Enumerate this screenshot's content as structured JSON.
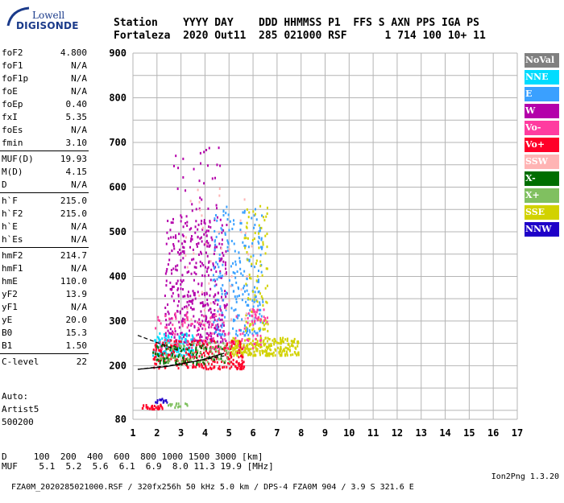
{
  "logo": {
    "line1": "Lowell",
    "line2": "DIGISONDE"
  },
  "header": {
    "columns": "Station    YYYY DAY    DDD HHMMSS P1  FFS S AXN PPS IGA PS",
    "values": "Fortaleza  2020 Out11  285 021000 RSF      1 714 100 10+ 11"
  },
  "params": [
    {
      "name": "foF2",
      "value": "4.800"
    },
    {
      "name": "foF1",
      "value": "N/A"
    },
    {
      "name": "foF1p",
      "value": "N/A"
    },
    {
      "name": "foE",
      "value": "N/A"
    },
    {
      "name": "foEp",
      "value": "0.40"
    },
    {
      "name": "fxI",
      "value": "5.35"
    },
    {
      "name": "foEs",
      "value": "N/A"
    },
    {
      "name": "fmin",
      "value": "3.10"
    },
    {
      "name": "MUF(D)",
      "value": "19.93"
    },
    {
      "name": "M(D)",
      "value": "4.15"
    },
    {
      "name": "D",
      "value": "N/A"
    },
    {
      "name": "h`F",
      "value": "215.0"
    },
    {
      "name": "h`F2",
      "value": "215.0"
    },
    {
      "name": "h`E",
      "value": "N/A"
    },
    {
      "name": "h`Es",
      "value": "N/A"
    },
    {
      "name": "hmF2",
      "value": "214.7"
    },
    {
      "name": "hmF1",
      "value": "N/A"
    },
    {
      "name": "hmE",
      "value": "110.0"
    },
    {
      "name": "yF2",
      "value": "13.9"
    },
    {
      "name": "yF1",
      "value": "N/A"
    },
    {
      "name": "yE",
      "value": "20.0"
    },
    {
      "name": "B0",
      "value": "15.3"
    },
    {
      "name": "B1",
      "value": "1.50"
    },
    {
      "name": "C-level",
      "value": "22"
    }
  ],
  "auto": {
    "line1": "Auto:",
    "line2": "Artist5",
    "line3": "500200"
  },
  "legend": [
    {
      "label": "NoVal",
      "color": "#808080"
    },
    {
      "label": "NNE",
      "color": "#00dcff"
    },
    {
      "label": "E",
      "color": "#3aa0ff"
    },
    {
      "label": "W",
      "color": "#b400aa"
    },
    {
      "label": "Vo-",
      "color": "#ff3ca0"
    },
    {
      "label": "Vo+",
      "color": "#ff0028"
    },
    {
      "label": "SSW",
      "color": "#ffb4b4"
    },
    {
      "label": "X-",
      "color": "#006e00"
    },
    {
      "label": "X+",
      "color": "#80c060"
    },
    {
      "label": "SSE",
      "color": "#d2d200"
    },
    {
      "label": "NNW",
      "color": "#1e00c8"
    }
  ],
  "footer": {
    "line1": "D     100  200  400  600  800 1000 1500 3000 [km]",
    "line2": "MUF    5.1  5.2  5.6  6.1  6.9  8.0 11.3 19.9 [MHz]",
    "line3": "FZA0M_2020285021000.RSF / 320fx256h 50 kHz 5.0 km / DPS-4 FZA0M 904 / 3.9 S 321.6 E",
    "line3_right": "Ion2Png 1.3.20"
  },
  "chart_data": {
    "type": "scatter",
    "xlabel": "",
    "ylabel": "",
    "xlim": [
      1,
      17
    ],
    "ylim": [
      80,
      900
    ],
    "xticks": [
      1,
      2,
      3,
      4,
      5,
      6,
      7,
      8,
      9,
      10,
      11,
      12,
      13,
      14,
      15,
      16,
      17
    ],
    "yticks": [
      80,
      200,
      300,
      400,
      500,
      600,
      700,
      800,
      900
    ],
    "grid": true,
    "legend_position": "right",
    "clusters": [
      {
        "name": "W",
        "color": "#b400aa",
        "fmin": 2.3,
        "fmax": 4.9,
        "hmin": 255,
        "hmax": 530,
        "count": 420
      },
      {
        "name": "W",
        "color": "#b400aa",
        "fmin": 2.6,
        "fmax": 4.6,
        "hmin": 520,
        "hmax": 700,
        "count": 40
      },
      {
        "name": "E",
        "color": "#3aa0ff",
        "fmin": 4.3,
        "fmax": 6.4,
        "hmin": 270,
        "hmax": 560,
        "count": 240
      },
      {
        "name": "NNE",
        "color": "#00dcff",
        "fmin": 1.8,
        "fmax": 3.5,
        "hmin": 225,
        "hmax": 275,
        "count": 120
      },
      {
        "name": "SSE",
        "color": "#d2d200",
        "fmin": 5.0,
        "fmax": 7.9,
        "hmin": 225,
        "hmax": 265,
        "count": 260
      },
      {
        "name": "SSE",
        "color": "#d2d200",
        "fmin": 5.6,
        "fmax": 6.6,
        "hmin": 280,
        "hmax": 560,
        "count": 90
      },
      {
        "name": "Vo+",
        "color": "#ff0028",
        "fmin": 1.8,
        "fmax": 5.6,
        "hmin": 195,
        "hmax": 260,
        "count": 280
      },
      {
        "name": "Vo-",
        "color": "#ff3ca0",
        "fmin": 1.9,
        "fmax": 6.4,
        "hmin": 240,
        "hmax": 320,
        "count": 120
      },
      {
        "name": "X-",
        "color": "#006e00",
        "fmin": 1.8,
        "fmax": 4.8,
        "hmin": 205,
        "hmax": 250,
        "count": 90
      },
      {
        "name": "X+",
        "color": "#80c060",
        "fmin": 2.1,
        "fmax": 5.0,
        "hmin": 210,
        "hmax": 255,
        "count": 70
      },
      {
        "name": "SSW",
        "color": "#ffb4b4",
        "fmin": 3.0,
        "fmax": 6.0,
        "hmin": 300,
        "hmax": 600,
        "count": 45
      },
      {
        "name": "Vo+",
        "color": "#ff0028",
        "fmin": 1.3,
        "fmax": 2.2,
        "hmin": 105,
        "hmax": 115,
        "count": 30
      },
      {
        "name": "NNW",
        "color": "#1e00c8",
        "fmin": 1.9,
        "fmax": 2.4,
        "hmin": 118,
        "hmax": 130,
        "count": 14
      },
      {
        "name": "X+",
        "color": "#80c060",
        "fmin": 2.4,
        "fmax": 3.3,
        "hmin": 108,
        "hmax": 118,
        "count": 14
      },
      {
        "name": "Vo-",
        "color": "#ff3ca0",
        "fmin": 5.9,
        "fmax": 6.6,
        "hmin": 300,
        "hmax": 330,
        "count": 25
      }
    ],
    "lines": [
      {
        "name": "trace-black",
        "color": "#000000",
        "dashed": false,
        "points": [
          [
            1.2,
            192
          ],
          [
            2.4,
            198
          ],
          [
            3.8,
            212
          ],
          [
            4.8,
            228
          ]
        ]
      },
      {
        "name": "trace-dashed",
        "color": "#000000",
        "dashed": true,
        "points": [
          [
            1.2,
            268
          ],
          [
            2.2,
            248
          ],
          [
            3.0,
            232
          ]
        ]
      },
      {
        "name": "profile-dashed",
        "color": "#000000",
        "dashed": true,
        "points": [
          [
            1.2,
            192
          ],
          [
            2.5,
            200
          ],
          [
            4.0,
            214
          ],
          [
            4.8,
            222
          ]
        ]
      }
    ]
  }
}
